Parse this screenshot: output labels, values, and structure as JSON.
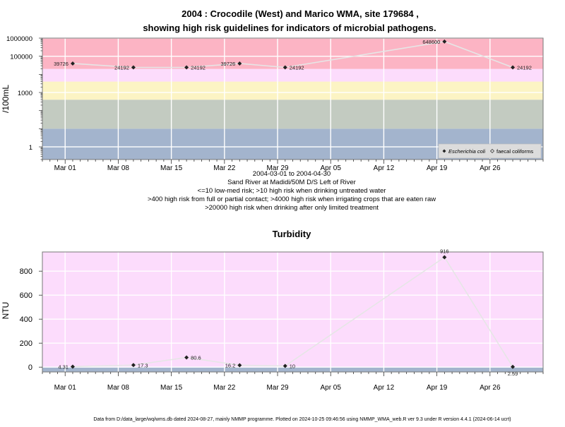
{
  "title": {
    "line1": "2004 : Crocodile (West) and Marico WMA, site 179684 ,",
    "line2": "showing high risk guidelines for indicators of microbial pathogens."
  },
  "notes": [
    "2004-03-01 to 2004-04-30",
    "Sand River at Madidi/50M D/S Left of River",
    "<=10 low-med risk; >10 high risk when drinking untreated water",
    ">400 high risk from full or partial contact; >4000 high risk when irrigating crops that are eaten raw",
    ">20000 high risk when drinking after only limited treatment"
  ],
  "footer": "Data from D:/data_large/wq/wms.db dated 2024-08-27, mainly NMMP programme. Plotted on 2024-10-25 09:46:56 using NMMP_WMA_web.R ver 9.3 under R version 4.4.1 (2024-06-14 ucrt)",
  "x_axis": {
    "start_date": "2004-02-27",
    "end_date": "2004-05-03",
    "ticks": [
      {
        "date": "2004-03-01",
        "label": "Mar 01"
      },
      {
        "date": "2004-03-08",
        "label": "Mar 08"
      },
      {
        "date": "2004-03-15",
        "label": "Mar 15"
      },
      {
        "date": "2004-03-22",
        "label": "Mar 22"
      },
      {
        "date": "2004-03-29",
        "label": "Mar 29"
      },
      {
        "date": "2004-04-05",
        "label": "Apr 05"
      },
      {
        "date": "2004-04-12",
        "label": "Apr 12"
      },
      {
        "date": "2004-04-19",
        "label": "Apr 19"
      },
      {
        "date": "2004-04-26",
        "label": "Apr 26"
      }
    ]
  },
  "chart_data": [
    {
      "type": "line",
      "title": "",
      "ylabel": "/100mL",
      "y_scale": "log",
      "ylim": [
        0.2,
        1000000
      ],
      "y_ticks": [
        {
          "value": 1,
          "label": "1"
        },
        {
          "value": 1000,
          "label": "1000"
        },
        {
          "value": 100000,
          "label": "100000"
        },
        {
          "value": 1000000,
          "label": "1000000"
        }
      ],
      "bands": [
        {
          "from": 0.2,
          "to": 10,
          "color": "#a3b4cd"
        },
        {
          "from": 10,
          "to": 400,
          "color": "#c3cbc1"
        },
        {
          "from": 400,
          "to": 4000,
          "color": "#fcf4c4"
        },
        {
          "from": 4000,
          "to": 20000,
          "color": "#fcdcfc"
        },
        {
          "from": 20000,
          "to": 1000000,
          "color": "#fcb4c4"
        }
      ],
      "legend": {
        "position": "bottom-right",
        "entries": [
          {
            "label": "Escherichia coli",
            "marker": "filled-diamond"
          },
          {
            "label": "faecal coliforms",
            "marker": "open-diamond"
          }
        ]
      },
      "series": [
        {
          "name": "Escherichia coli",
          "points": [
            {
              "date": "2004-03-02",
              "value": 39726,
              "label": "39726",
              "label_side": "left"
            },
            {
              "date": "2004-03-10",
              "value": 24192,
              "label": "24192",
              "label_side": "left"
            },
            {
              "date": "2004-03-17",
              "value": 24192,
              "label": "24192",
              "label_side": "right"
            },
            {
              "date": "2004-03-24",
              "value": 39726,
              "label": "39726",
              "label_side": "left"
            },
            {
              "date": "2004-03-30",
              "value": 24192,
              "label": "24192",
              "label_side": "right"
            },
            {
              "date": "2004-04-20",
              "value": 648600,
              "label": "648600",
              "label_side": "left"
            },
            {
              "date": "2004-04-29",
              "value": 24192,
              "label": "24192",
              "label_side": "right"
            }
          ]
        }
      ]
    },
    {
      "type": "line",
      "title": "Turbidity",
      "ylabel": "NTU",
      "y_scale": "linear",
      "ylim": [
        -40,
        960
      ],
      "y_ticks": [
        {
          "value": 0,
          "label": "0"
        },
        {
          "value": 200,
          "label": "200"
        },
        {
          "value": 400,
          "label": "400"
        },
        {
          "value": 600,
          "label": "600"
        },
        {
          "value": 800,
          "label": "800"
        }
      ],
      "bands": [
        {
          "from": -40,
          "to": 5,
          "color": "#a3b4cd"
        },
        {
          "from": 5,
          "to": 960,
          "color": "#fcdcfc"
        }
      ],
      "series": [
        {
          "name": "",
          "points": [
            {
              "date": "2004-03-02",
              "value": 4.31,
              "label": "4.31",
              "label_side": "left"
            },
            {
              "date": "2004-03-10",
              "value": 17.3,
              "label": "17.3",
              "label_side": "right"
            },
            {
              "date": "2004-03-17",
              "value": 80.6,
              "label": "80.6",
              "label_side": "right"
            },
            {
              "date": "2004-03-24",
              "value": 16.2,
              "label": "16.2",
              "label_side": "left"
            },
            {
              "date": "2004-03-30",
              "value": 10,
              "label": "10",
              "label_side": "right"
            },
            {
              "date": "2004-04-20",
              "value": 916,
              "label": "916",
              "label_side": "above"
            },
            {
              "date": "2004-04-29",
              "value": 2.59,
              "label": "2.59",
              "label_side": "below"
            }
          ]
        }
      ]
    }
  ]
}
